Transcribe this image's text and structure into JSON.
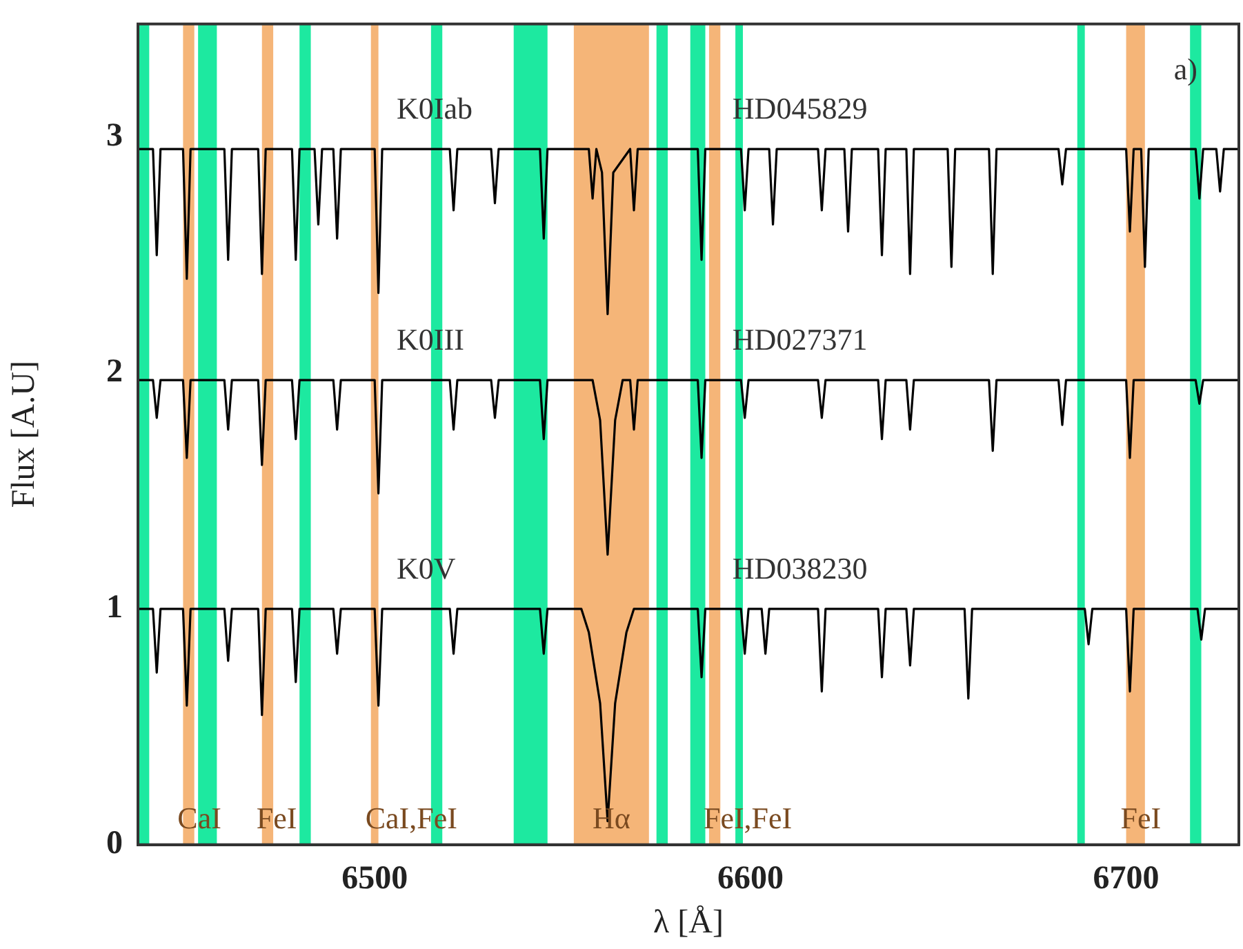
{
  "chart_data": {
    "type": "line",
    "xlabel": "λ [Å]",
    "ylabel": "Flux [A.U]",
    "xlim": [
      6437,
      6730
    ],
    "ylim": [
      0,
      3.48
    ],
    "xticks": [
      6500,
      6600,
      6700
    ],
    "yticks": [
      0,
      1,
      2,
      3
    ],
    "grid": false,
    "legend": false,
    "marker": "none",
    "line_style": "solid",
    "series": [
      {
        "name": "K0Iab",
        "color": "#000000",
        "x": [
          6437,
          6441,
          6442,
          6443,
          6449,
          6450,
          6451,
          6460,
          6461,
          6462,
          6469,
          6470,
          6471,
          6478,
          6479,
          6480,
          6484,
          6485,
          6486,
          6489,
          6490,
          6491,
          6500,
          6501,
          6502,
          6520,
          6521,
          6522,
          6531,
          6532,
          6533,
          6544,
          6545,
          6546,
          6557,
          6558,
          6559,
          6560.5,
          6562,
          6563.5,
          6568,
          6569,
          6570,
          6586,
          6587,
          6588,
          6597.5,
          6598.5,
          6599.5,
          6605,
          6606,
          6607,
          6618,
          6619,
          6620,
          6625,
          6626,
          6627,
          6634,
          6635,
          6636,
          6641.5,
          6642.5,
          6643.5,
          6652.5,
          6653.5,
          6654.5,
          6663.5,
          6664.5,
          6665.5,
          6682,
          6683,
          6684,
          6700,
          6701,
          6702,
          6704,
          6705,
          6706,
          6718.5,
          6719.5,
          6720.5,
          6724,
          6725,
          6726,
          6730
        ],
        "values": [
          2.95,
          2.95,
          2.5,
          2.95,
          2.95,
          2.4,
          2.95,
          2.95,
          2.48,
          2.95,
          2.95,
          2.42,
          2.95,
          2.95,
          2.48,
          2.95,
          2.95,
          2.63,
          2.95,
          2.95,
          2.57,
          2.95,
          2.95,
          2.34,
          2.95,
          2.95,
          2.69,
          2.95,
          2.95,
          2.72,
          2.95,
          2.95,
          2.57,
          2.95,
          2.95,
          2.74,
          2.95,
          2.85,
          2.25,
          2.85,
          2.95,
          2.69,
          2.95,
          2.95,
          2.48,
          2.95,
          2.95,
          2.69,
          2.95,
          2.95,
          2.63,
          2.95,
          2.95,
          2.69,
          2.95,
          2.95,
          2.6,
          2.95,
          2.95,
          2.5,
          2.95,
          2.95,
          2.42,
          2.95,
          2.95,
          2.45,
          2.95,
          2.95,
          2.42,
          2.95,
          2.95,
          2.8,
          2.95,
          2.95,
          2.6,
          2.95,
          2.95,
          2.45,
          2.95,
          2.95,
          2.74,
          2.95,
          2.95,
          2.77,
          2.95,
          2.95
        ]
      },
      {
        "name": "K0III",
        "color": "#000000",
        "x": [
          6437,
          6441,
          6442,
          6443,
          6449,
          6450,
          6451,
          6460,
          6461,
          6462,
          6469,
          6470,
          6471,
          6478,
          6479,
          6480,
          6489,
          6490,
          6491,
          6500,
          6501,
          6502,
          6520,
          6521,
          6522,
          6531,
          6532,
          6533,
          6544,
          6545,
          6546,
          6558,
          6560,
          6562,
          6564,
          6566,
          6568,
          6569,
          6570,
          6586,
          6587,
          6588,
          6597.5,
          6598.5,
          6599.5,
          6618,
          6619,
          6620,
          6634,
          6635,
          6636,
          6641.5,
          6642.5,
          6643.5,
          6663.5,
          6664.5,
          6665.5,
          6682,
          6683,
          6684,
          6700,
          6701,
          6702,
          6718.5,
          6719.5,
          6720.5,
          6730
        ],
        "values": [
          1.97,
          1.97,
          1.81,
          1.97,
          1.97,
          1.64,
          1.97,
          1.97,
          1.76,
          1.97,
          1.97,
          1.61,
          1.97,
          1.97,
          1.72,
          1.97,
          1.97,
          1.76,
          1.97,
          1.97,
          1.49,
          1.97,
          1.97,
          1.76,
          1.97,
          1.97,
          1.81,
          1.97,
          1.97,
          1.72,
          1.97,
          1.97,
          1.8,
          1.23,
          1.8,
          1.97,
          1.97,
          1.76,
          1.97,
          1.97,
          1.64,
          1.97,
          1.97,
          1.81,
          1.97,
          1.97,
          1.81,
          1.97,
          1.97,
          1.72,
          1.97,
          1.97,
          1.76,
          1.97,
          1.97,
          1.67,
          1.97,
          1.97,
          1.78,
          1.97,
          1.97,
          1.64,
          1.97,
          1.97,
          1.87,
          1.97,
          1.97
        ]
      },
      {
        "name": "K0V",
        "color": "#000000",
        "x": [
          6437,
          6441,
          6442,
          6443,
          6449,
          6450,
          6451,
          6460,
          6461,
          6462,
          6469,
          6470,
          6471,
          6478,
          6479,
          6480,
          6489,
          6490,
          6491,
          6500,
          6501,
          6502,
          6520,
          6521,
          6522,
          6544,
          6545,
          6546,
          6555,
          6557,
          6560,
          6562,
          6564,
          6567,
          6569,
          6586,
          6587,
          6588,
          6597.5,
          6598.5,
          6599.5,
          6603,
          6604,
          6605,
          6618,
          6619,
          6620,
          6634,
          6635,
          6636,
          6641.5,
          6642.5,
          6643.5,
          6657,
          6658,
          6659,
          6689,
          6690,
          6691,
          6700,
          6701,
          6702,
          6719,
          6720,
          6721,
          6730
        ],
        "values": [
          1.0,
          1.0,
          0.73,
          1.0,
          1.0,
          0.59,
          1.0,
          1.0,
          0.78,
          1.0,
          1.0,
          0.55,
          1.0,
          1.0,
          0.69,
          1.0,
          1.0,
          0.81,
          1.0,
          1.0,
          0.59,
          1.0,
          1.0,
          0.81,
          1.0,
          1.0,
          0.81,
          1.0,
          1.0,
          0.9,
          0.6,
          0.1,
          0.6,
          0.9,
          1.0,
          1.0,
          0.71,
          1.0,
          1.0,
          0.81,
          1.0,
          1.0,
          0.81,
          1.0,
          1.0,
          0.65,
          1.0,
          1.0,
          0.71,
          1.0,
          1.0,
          0.76,
          1.0,
          1.0,
          0.62,
          1.0,
          1.0,
          0.85,
          1.0,
          1.0,
          0.65,
          1.0,
          1.0,
          0.87,
          1.0,
          1.0
        ]
      }
    ],
    "bands": [
      {
        "axis": "x",
        "from": 6437,
        "to": 6440,
        "color": "#1de9a0"
      },
      {
        "axis": "x",
        "from": 6453,
        "to": 6458,
        "color": "#1de9a0"
      },
      {
        "axis": "x",
        "from": 6480,
        "to": 6483,
        "color": "#1de9a0"
      },
      {
        "axis": "x",
        "from": 6515,
        "to": 6518,
        "color": "#1de9a0"
      },
      {
        "axis": "x",
        "from": 6537,
        "to": 6546,
        "color": "#1de9a0"
      },
      {
        "axis": "x",
        "from": 6575,
        "to": 6578,
        "color": "#1de9a0"
      },
      {
        "axis": "x",
        "from": 6584,
        "to": 6588,
        "color": "#1de9a0"
      },
      {
        "axis": "x",
        "from": 6596,
        "to": 6598,
        "color": "#1de9a0"
      },
      {
        "axis": "x",
        "from": 6687,
        "to": 6689,
        "color": "#1de9a0"
      },
      {
        "axis": "x",
        "from": 6717,
        "to": 6720,
        "color": "#1de9a0"
      },
      {
        "axis": "x",
        "from": 6449,
        "to": 6452,
        "color": "#f5b578",
        "label": "CaI"
      },
      {
        "axis": "x",
        "from": 6470,
        "to": 6473,
        "color": "#f5b578",
        "label": "FeI"
      },
      {
        "axis": "x",
        "from": 6499,
        "to": 6501,
        "color": "#f5b578",
        "label": "CaI,FeI"
      },
      {
        "axis": "x",
        "from": 6553,
        "to": 6573,
        "color": "#f5b578",
        "label": "Hα"
      },
      {
        "axis": "x",
        "from": 6589,
        "to": 6592,
        "color": "#f5b578",
        "label": "FeI,FeI"
      },
      {
        "axis": "x",
        "from": 6700,
        "to": 6705,
        "color": "#f5b578",
        "label": "FeI"
      }
    ],
    "annotations": [
      "HD045829",
      "HD027371",
      "HD038230",
      "a)"
    ]
  }
}
